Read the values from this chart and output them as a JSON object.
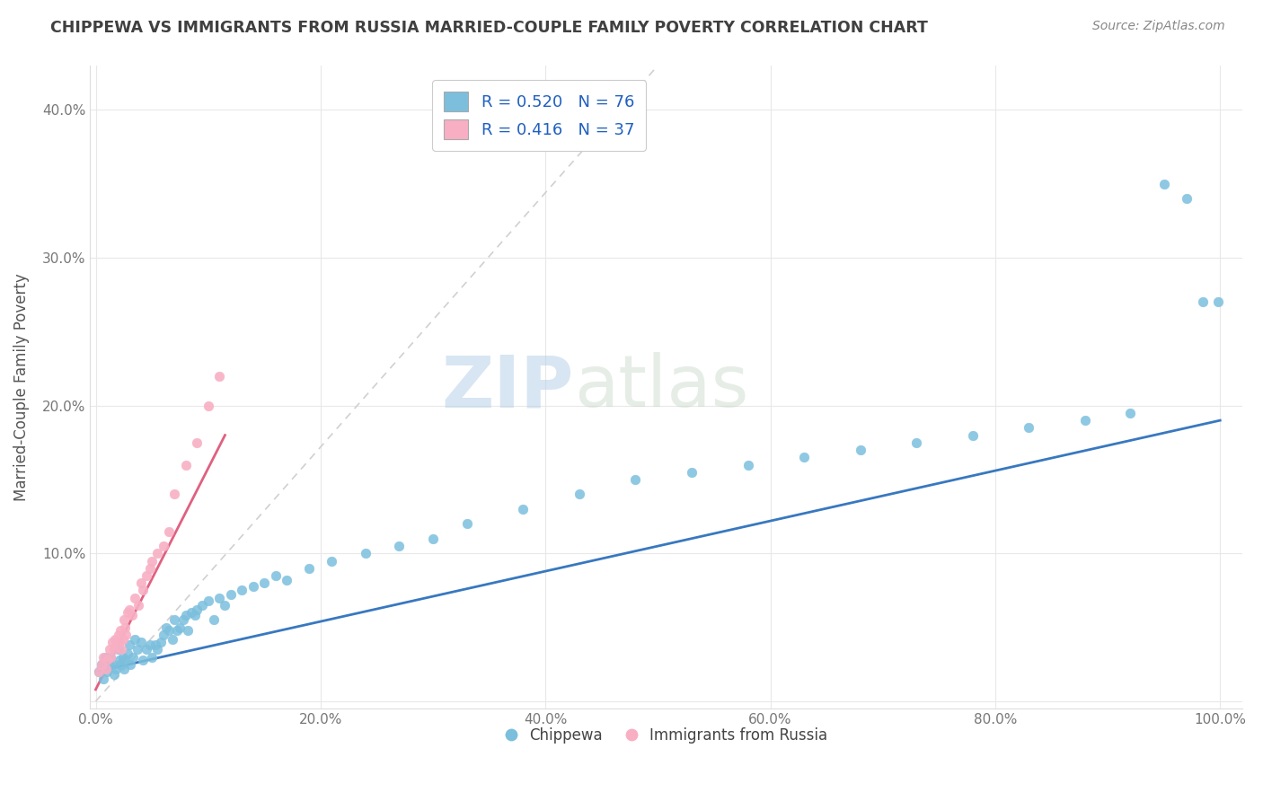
{
  "title": "CHIPPEWA VS IMMIGRANTS FROM RUSSIA MARRIED-COUPLE FAMILY POVERTY CORRELATION CHART",
  "source_text": "Source: ZipAtlas.com",
  "ylabel": "Married-Couple Family Poverty",
  "xlabel": "",
  "xlim": [
    -0.005,
    1.02
  ],
  "ylim": [
    -0.005,
    0.43
  ],
  "xticks": [
    0.0,
    0.2,
    0.4,
    0.6,
    0.8,
    1.0
  ],
  "yticks": [
    0.0,
    0.1,
    0.2,
    0.3,
    0.4
  ],
  "xtick_labels": [
    "0.0%",
    "20.0%",
    "40.0%",
    "60.0%",
    "80.0%",
    "100.0%"
  ],
  "ytick_labels": [
    "",
    "10.0%",
    "20.0%",
    "30.0%",
    "40.0%"
  ],
  "chippewa_color": "#7bbfdd",
  "russia_color": "#f8afc4",
  "chippewa_line_color": "#3878c0",
  "russia_line_color": "#e06080",
  "diag_line_color": "#d0d0d0",
  "R_chippewa": 0.52,
  "N_chippewa": 76,
  "R_russia": 0.416,
  "N_russia": 37,
  "watermark_zip": "ZIP",
  "watermark_atlas": "atlas",
  "legend_label_1": "Chippewa",
  "legend_label_2": "Immigrants from Russia",
  "background_color": "#ffffff",
  "chippewa_x": [
    0.003,
    0.005,
    0.007,
    0.008,
    0.01,
    0.012,
    0.013,
    0.015,
    0.016,
    0.018,
    0.02,
    0.021,
    0.022,
    0.024,
    0.025,
    0.026,
    0.028,
    0.03,
    0.031,
    0.033,
    0.035,
    0.037,
    0.04,
    0.042,
    0.045,
    0.048,
    0.05,
    0.053,
    0.055,
    0.058,
    0.06,
    0.063,
    0.065,
    0.068,
    0.07,
    0.072,
    0.075,
    0.078,
    0.08,
    0.082,
    0.085,
    0.088,
    0.09,
    0.095,
    0.1,
    0.105,
    0.11,
    0.115,
    0.12,
    0.13,
    0.14,
    0.15,
    0.16,
    0.17,
    0.19,
    0.21,
    0.24,
    0.27,
    0.3,
    0.33,
    0.38,
    0.43,
    0.48,
    0.53,
    0.58,
    0.63,
    0.68,
    0.73,
    0.78,
    0.83,
    0.88,
    0.92,
    0.95,
    0.97,
    0.985,
    0.998
  ],
  "chippewa_y": [
    0.02,
    0.025,
    0.015,
    0.03,
    0.02,
    0.025,
    0.03,
    0.025,
    0.018,
    0.022,
    0.035,
    0.028,
    0.025,
    0.03,
    0.022,
    0.028,
    0.032,
    0.038,
    0.025,
    0.03,
    0.042,
    0.035,
    0.04,
    0.028,
    0.035,
    0.038,
    0.03,
    0.038,
    0.035,
    0.04,
    0.045,
    0.05,
    0.048,
    0.042,
    0.055,
    0.048,
    0.05,
    0.055,
    0.058,
    0.048,
    0.06,
    0.058,
    0.062,
    0.065,
    0.068,
    0.055,
    0.07,
    0.065,
    0.072,
    0.075,
    0.078,
    0.08,
    0.085,
    0.082,
    0.09,
    0.095,
    0.1,
    0.105,
    0.11,
    0.12,
    0.13,
    0.14,
    0.15,
    0.155,
    0.16,
    0.165,
    0.17,
    0.175,
    0.18,
    0.185,
    0.19,
    0.195,
    0.35,
    0.34,
    0.27,
    0.27
  ],
  "russia_x": [
    0.003,
    0.005,
    0.007,
    0.009,
    0.01,
    0.012,
    0.013,
    0.015,
    0.016,
    0.017,
    0.018,
    0.02,
    0.021,
    0.022,
    0.023,
    0.024,
    0.025,
    0.026,
    0.027,
    0.028,
    0.03,
    0.032,
    0.035,
    0.038,
    0.04,
    0.042,
    0.045,
    0.048,
    0.05,
    0.055,
    0.06,
    0.065,
    0.07,
    0.08,
    0.09,
    0.1,
    0.11
  ],
  "russia_y": [
    0.02,
    0.025,
    0.03,
    0.022,
    0.028,
    0.035,
    0.03,
    0.04,
    0.035,
    0.042,
    0.038,
    0.045,
    0.04,
    0.048,
    0.035,
    0.042,
    0.055,
    0.05,
    0.045,
    0.06,
    0.062,
    0.058,
    0.07,
    0.065,
    0.08,
    0.075,
    0.085,
    0.09,
    0.095,
    0.1,
    0.105,
    0.115,
    0.14,
    0.16,
    0.175,
    0.2,
    0.22
  ]
}
